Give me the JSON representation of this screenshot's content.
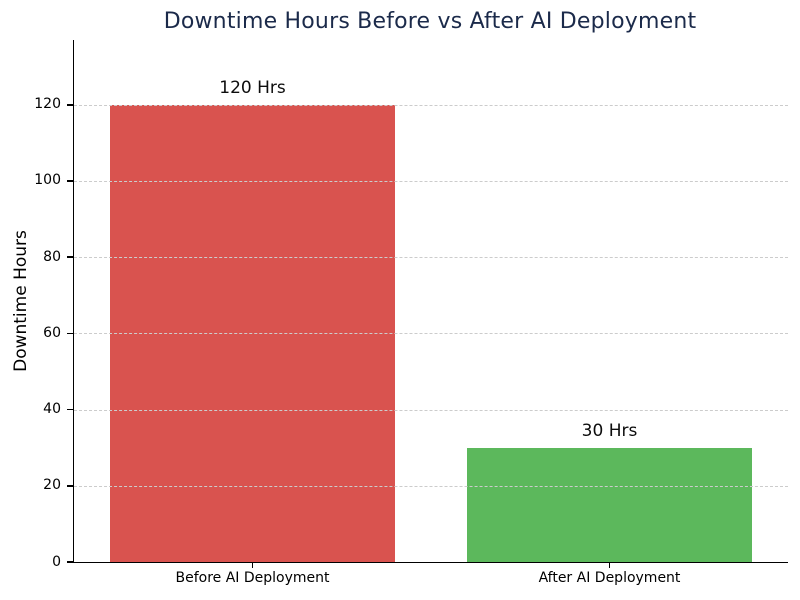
{
  "chart_data": {
    "type": "bar",
    "title": "Downtime Hours Before vs After AI Deployment",
    "title_color": "#1b2a4a",
    "xlabel": "",
    "ylabel": "Downtime Hours",
    "categories": [
      "Before AI Deployment",
      "After AI Deployment"
    ],
    "values": [
      120,
      30
    ],
    "bar_labels": [
      "120 Hrs",
      "30 Hrs"
    ],
    "bar_colors": [
      "#d9534f",
      "#5cb85c"
    ],
    "bar_width_fraction": 0.8,
    "xlim": [
      -0.5,
      1.5
    ],
    "ylim": [
      0,
      137
    ],
    "yticks": [
      0,
      20,
      40,
      60,
      80,
      100,
      120
    ],
    "grid": "horizontal-dashed-on-top",
    "grid_color": "#cccccc",
    "legend": "none",
    "background_color": "#ffffff",
    "spine_color": "#000000"
  }
}
